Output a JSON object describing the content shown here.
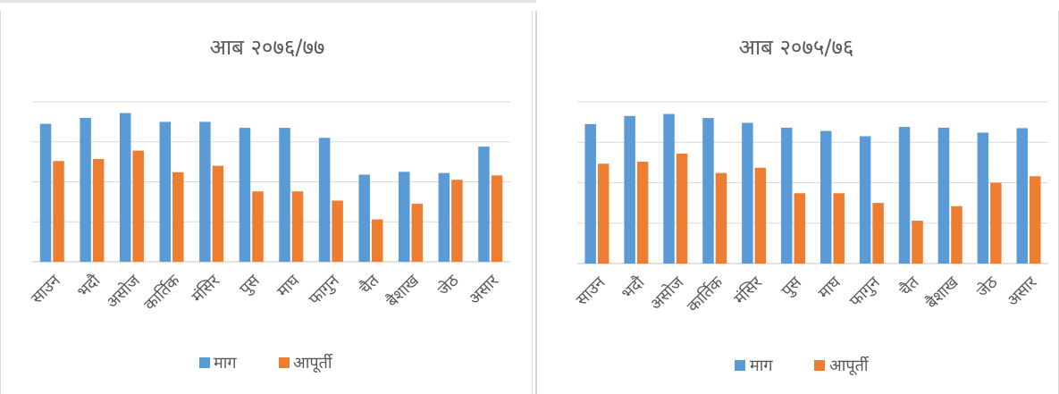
{
  "colors": {
    "demand": "#5B9BD5",
    "supply": "#ED7D31",
    "grid": "#d9d9d9",
    "text": "#595959"
  },
  "chart_data": [
    {
      "type": "bar",
      "title": "आब २०७६/७७",
      "categories": [
        "साउन",
        "भदौ",
        "असोज",
        "कार्तिक",
        "मंसिर",
        "पुस",
        "माघ",
        "फागुन",
        "चैत",
        "बैशाख",
        "जेठ",
        "असार"
      ],
      "series": [
        {
          "name": "माग",
          "color": "#5B9BD5",
          "values": [
            3.45,
            3.6,
            3.72,
            3.5,
            3.5,
            3.35,
            3.35,
            3.1,
            2.18,
            2.25,
            2.22,
            2.88
          ]
        },
        {
          "name": "आपूर्ती",
          "color": "#ED7D31",
          "values": [
            2.52,
            2.57,
            2.78,
            2.24,
            2.4,
            1.76,
            1.76,
            1.53,
            1.06,
            1.45,
            2.05,
            2.16
          ]
        }
      ],
      "ylim": [
        0,
        4
      ],
      "grid": true,
      "legend": "bottom"
    },
    {
      "type": "bar",
      "title": "आब २०७५/७६",
      "categories": [
        "साउन",
        "भदौ",
        "असोज",
        "कार्तिक",
        "मंसिर",
        "पुस",
        "माघ",
        "फागुन",
        "चैत",
        "बैशाख",
        "जेठ",
        "असार"
      ],
      "series": [
        {
          "name": "माग",
          "color": "#5B9BD5",
          "values": [
            3.45,
            3.65,
            3.7,
            3.6,
            3.48,
            3.36,
            3.28,
            3.15,
            3.38,
            3.36,
            3.24,
            3.35
          ]
        },
        {
          "name": "आपूर्ती",
          "color": "#ED7D31",
          "values": [
            2.47,
            2.52,
            2.72,
            2.24,
            2.37,
            1.74,
            1.74,
            1.5,
            1.06,
            1.42,
            2.0,
            2.16
          ]
        }
      ],
      "ylim": [
        0,
        4
      ],
      "grid": true,
      "legend": "bottom"
    }
  ]
}
